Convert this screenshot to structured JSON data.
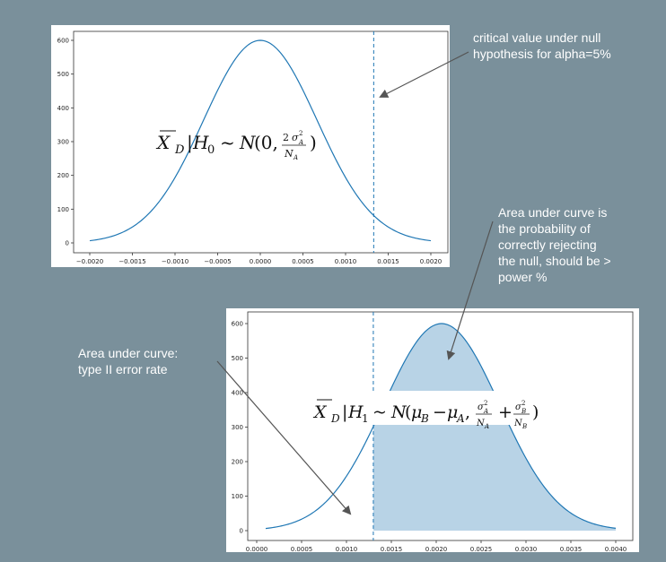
{
  "annotations": {
    "critical_value": [
      "critical value under null",
      "hypothesis for alpha=5%"
    ],
    "power_area": [
      "Area under curve is",
      "the probability of",
      "correctly rejecting",
      "the null, should be >",
      "power %"
    ],
    "type2_area": [
      "Area under curve:",
      "type II error rate"
    ]
  },
  "formulas": {
    "h0": "X̄_D | H_0 ~ N(0, 2σ_A²/N_A)",
    "h1": "X̄_D | H_1 ~ N(μ_B − μ_A, σ_A²/N_A + σ_B²/N_B)"
  },
  "colors": {
    "curve": "#1f77b4",
    "fill": "#b8d3e6",
    "arrow": "#555555",
    "background": "#7a909b"
  },
  "chart_data": [
    {
      "type": "line",
      "series": [
        {
          "values_desc": "normal pdf",
          "mean": 0.0,
          "sd": 0.000665
        }
      ],
      "x_ticks": [
        "-0.0020",
        "-0.0015",
        "-0.0010",
        "-0.0005",
        "0.0000",
        "0.0005",
        "0.0010",
        "0.0015",
        "0.0020"
      ],
      "y_ticks": [
        "0",
        "100",
        "200",
        "300",
        "400",
        "500",
        "600"
      ],
      "xlim": [
        -0.002,
        0.002
      ],
      "ylim": [
        0,
        600
      ],
      "critical_value": 0.00133,
      "grid": false
    },
    {
      "type": "area",
      "series": [
        {
          "values_desc": "normal pdf",
          "mean": 0.00211,
          "sd": 0.000665
        }
      ],
      "x_ticks": [
        "0.0000",
        "0.0005",
        "0.0010",
        "0.0015",
        "0.0020",
        "0.0025",
        "0.0030",
        "0.0035",
        "0.0040"
      ],
      "y_ticks": [
        "0",
        "100",
        "200",
        "300",
        "400",
        "500",
        "600"
      ],
      "xlim": [
        0.0001,
        0.0041
      ],
      "ylim": [
        0,
        600
      ],
      "critical_value": 0.00133,
      "shaded_from": 0.00133,
      "grid": false
    }
  ]
}
